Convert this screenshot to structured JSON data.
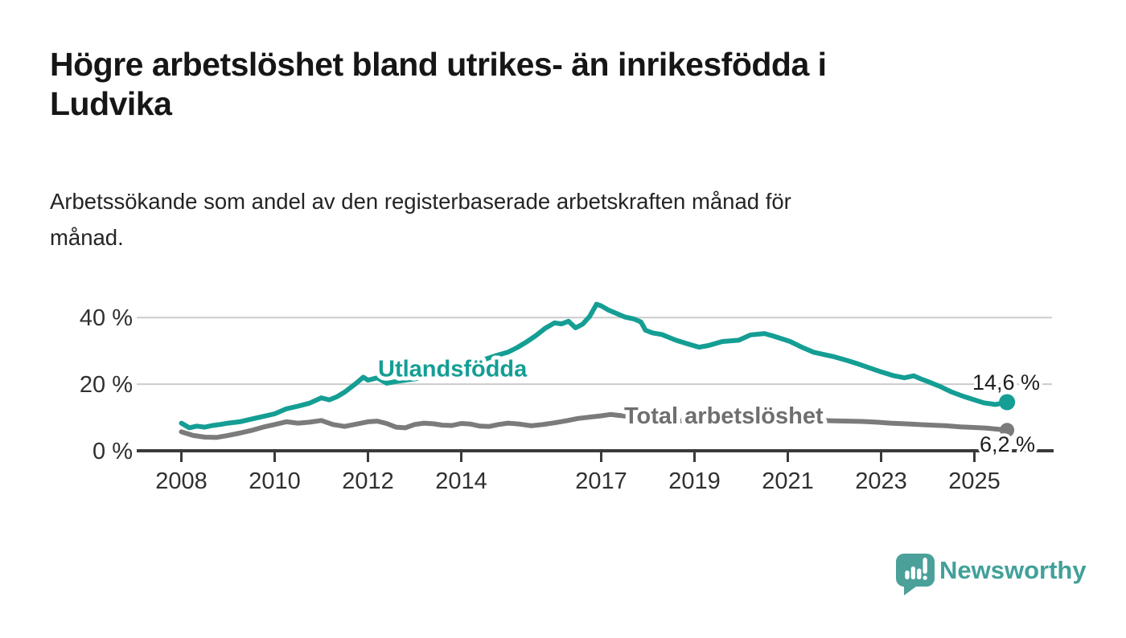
{
  "header": {
    "title_lines": [
      "Högre arbetslöshet bland utrikes- än inrikesfödda i",
      "Ludvika"
    ],
    "subtitle_lines": [
      "Arbetssökande som andel av den registerbaserade arbetskraften månad för",
      "månad."
    ]
  },
  "footer": {
    "brand": "Newsworthy",
    "logo_icon": "bar-chart-speech-bubble-icon",
    "brand_color": "#41A09A"
  },
  "colors": {
    "teal": "#149E94",
    "gray_line": "#7B7B7B",
    "gray_label": "#6F6F6F",
    "axis": "#3A3A3A",
    "gridline": "#CCCCCC",
    "value_label": "#1C1C1C",
    "tick_label": "#303030",
    "background": "#FFFFFF"
  },
  "chart_data": {
    "type": "line",
    "title": "Högre arbetslöshet bland utrikes- än inrikesfödda i Ludvika",
    "subtitle": "Arbetssökande som andel av den registerbaserade arbetskraften månad för månad.",
    "unit": "%",
    "grid": "horizontal",
    "legend_position": "inline-labels",
    "x_range": [
      2007.05,
      2026.7
    ],
    "y_range": [
      0,
      45
    ],
    "x_ticks": [
      {
        "value": 2008,
        "label": "2008"
      },
      {
        "value": 2010,
        "label": "2010"
      },
      {
        "value": 2012,
        "label": "2012"
      },
      {
        "value": 2014,
        "label": "2014"
      },
      {
        "value": 2017,
        "label": "2017"
      },
      {
        "value": 2019,
        "label": "2019"
      },
      {
        "value": 2021,
        "label": "2021"
      },
      {
        "value": 2023,
        "label": "2023"
      },
      {
        "value": 2025,
        "label": "2025"
      }
    ],
    "y_ticks": [
      {
        "value": 0,
        "label": "0 %"
      },
      {
        "value": 20,
        "label": "20 %"
      },
      {
        "value": 40,
        "label": "40 %"
      }
    ],
    "series": [
      {
        "name": "Utlandsfödda",
        "label": "Utlandsfödda",
        "end_label": "14,6 %",
        "end_value": 14.6,
        "color": "#149E94",
        "points": [
          [
            2008.0,
            8.3
          ],
          [
            2008.17,
            6.9
          ],
          [
            2008.33,
            7.4
          ],
          [
            2008.5,
            7.1
          ],
          [
            2008.67,
            7.6
          ],
          [
            2008.83,
            7.9
          ],
          [
            2009.0,
            8.3
          ],
          [
            2009.25,
            8.7
          ],
          [
            2009.5,
            9.5
          ],
          [
            2009.75,
            10.3
          ],
          [
            2010.0,
            11.1
          ],
          [
            2010.25,
            12.6
          ],
          [
            2010.5,
            13.4
          ],
          [
            2010.75,
            14.3
          ],
          [
            2011.0,
            15.9
          ],
          [
            2011.17,
            15.3
          ],
          [
            2011.33,
            16.2
          ],
          [
            2011.5,
            17.6
          ],
          [
            2011.75,
            20.3
          ],
          [
            2011.9,
            22.1
          ],
          [
            2012.0,
            21.2
          ],
          [
            2012.2,
            21.9
          ],
          [
            2012.4,
            20.3
          ],
          [
            2012.6,
            20.8
          ],
          [
            2012.8,
            21.2
          ],
          [
            2013.0,
            21.6
          ],
          [
            2013.25,
            22.3
          ],
          [
            2013.5,
            23.2
          ],
          [
            2013.75,
            24.3
          ],
          [
            2014.0,
            25.2
          ],
          [
            2014.25,
            26.3
          ],
          [
            2014.5,
            27.4
          ],
          [
            2014.75,
            28.6
          ],
          [
            2015.0,
            29.6
          ],
          [
            2015.2,
            31.0
          ],
          [
            2015.4,
            32.7
          ],
          [
            2015.6,
            34.6
          ],
          [
            2015.8,
            36.8
          ],
          [
            2016.0,
            38.4
          ],
          [
            2016.15,
            38.1
          ],
          [
            2016.3,
            38.9
          ],
          [
            2016.45,
            36.9
          ],
          [
            2016.6,
            38.0
          ],
          [
            2016.75,
            40.3
          ],
          [
            2016.9,
            44.0
          ],
          [
            2017.0,
            43.5
          ],
          [
            2017.15,
            42.3
          ],
          [
            2017.3,
            41.4
          ],
          [
            2017.5,
            40.2
          ],
          [
            2017.7,
            39.6
          ],
          [
            2017.85,
            38.7
          ],
          [
            2017.95,
            36.2
          ],
          [
            2018.1,
            35.4
          ],
          [
            2018.3,
            34.9
          ],
          [
            2018.6,
            33.2
          ],
          [
            2018.85,
            32.1
          ],
          [
            2019.1,
            31.1
          ],
          [
            2019.3,
            31.6
          ],
          [
            2019.6,
            32.8
          ],
          [
            2019.95,
            33.2
          ],
          [
            2020.2,
            34.8
          ],
          [
            2020.5,
            35.2
          ],
          [
            2020.7,
            34.4
          ],
          [
            2021.05,
            32.8
          ],
          [
            2021.3,
            31.1
          ],
          [
            2021.55,
            29.6
          ],
          [
            2021.8,
            28.8
          ],
          [
            2022.0,
            28.2
          ],
          [
            2022.25,
            27.2
          ],
          [
            2022.5,
            26.1
          ],
          [
            2022.75,
            24.9
          ],
          [
            2023.0,
            23.7
          ],
          [
            2023.25,
            22.6
          ],
          [
            2023.5,
            21.9
          ],
          [
            2023.7,
            22.5
          ],
          [
            2023.85,
            21.6
          ],
          [
            2024.0,
            20.8
          ],
          [
            2024.25,
            19.4
          ],
          [
            2024.5,
            17.7
          ],
          [
            2024.75,
            16.4
          ],
          [
            2025.0,
            15.3
          ],
          [
            2025.2,
            14.4
          ],
          [
            2025.45,
            13.9
          ],
          [
            2025.7,
            14.6
          ]
        ]
      },
      {
        "name": "Total arbetslöshet",
        "label": "Total arbetslöshet",
        "end_label": "6,2 %",
        "end_value": 6.2,
        "color": "#7B7B7B",
        "points": [
          [
            2008.0,
            5.7
          ],
          [
            2008.25,
            4.6
          ],
          [
            2008.5,
            4.1
          ],
          [
            2008.75,
            4.0
          ],
          [
            2009.0,
            4.6
          ],
          [
            2009.25,
            5.3
          ],
          [
            2009.5,
            6.1
          ],
          [
            2009.75,
            7.1
          ],
          [
            2010.0,
            7.9
          ],
          [
            2010.25,
            8.7
          ],
          [
            2010.5,
            8.3
          ],
          [
            2010.75,
            8.6
          ],
          [
            2011.0,
            9.1
          ],
          [
            2011.25,
            7.9
          ],
          [
            2011.5,
            7.3
          ],
          [
            2011.75,
            8.0
          ],
          [
            2012.0,
            8.7
          ],
          [
            2012.2,
            8.9
          ],
          [
            2012.4,
            8.2
          ],
          [
            2012.6,
            7.1
          ],
          [
            2012.8,
            6.9
          ],
          [
            2013.0,
            7.9
          ],
          [
            2013.2,
            8.3
          ],
          [
            2013.4,
            8.1
          ],
          [
            2013.6,
            7.7
          ],
          [
            2013.8,
            7.6
          ],
          [
            2014.0,
            8.2
          ],
          [
            2014.2,
            8.0
          ],
          [
            2014.4,
            7.4
          ],
          [
            2014.6,
            7.3
          ],
          [
            2014.8,
            7.9
          ],
          [
            2015.0,
            8.3
          ],
          [
            2015.25,
            8.0
          ],
          [
            2015.5,
            7.5
          ],
          [
            2015.75,
            7.9
          ],
          [
            2016.0,
            8.4
          ],
          [
            2016.25,
            9.0
          ],
          [
            2016.5,
            9.7
          ],
          [
            2016.75,
            10.1
          ],
          [
            2017.0,
            10.5
          ],
          [
            2017.2,
            10.9
          ],
          [
            2017.4,
            10.6
          ],
          [
            2017.6,
            10.3
          ],
          [
            2018.0,
            9.9
          ],
          [
            2018.5,
            9.3
          ],
          [
            2019.0,
            8.6
          ],
          [
            2019.3,
            8.0
          ],
          [
            2019.7,
            8.4
          ],
          [
            2020.1,
            9.3
          ],
          [
            2020.5,
            9.8
          ],
          [
            2021.0,
            9.6
          ],
          [
            2021.5,
            9.2
          ],
          [
            2022.0,
            9.0
          ],
          [
            2022.3,
            8.9
          ],
          [
            2022.6,
            8.8
          ],
          [
            2022.9,
            8.6
          ],
          [
            2023.2,
            8.3
          ],
          [
            2023.5,
            8.1
          ],
          [
            2023.8,
            7.9
          ],
          [
            2024.1,
            7.7
          ],
          [
            2024.4,
            7.5
          ],
          [
            2024.7,
            7.2
          ],
          [
            2025.0,
            7.0
          ],
          [
            2025.25,
            6.8
          ],
          [
            2025.5,
            6.5
          ],
          [
            2025.7,
            6.2
          ]
        ]
      }
    ]
  }
}
